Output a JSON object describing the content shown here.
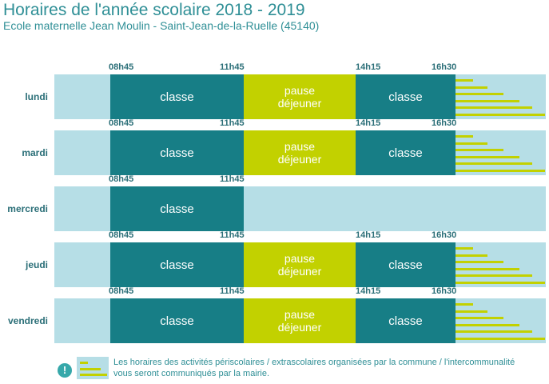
{
  "header": {
    "title": "Horaires de l'année scolaire 2018 - 2019",
    "subtitle": "Ecole maternelle Jean Moulin - Saint-Jean-de-la-Ruelle (45140)"
  },
  "labels": {
    "classe": "classe",
    "pause_line1": "pause",
    "pause_line2": "déjeuner"
  },
  "days": [
    {
      "name": "lundi",
      "times": [
        "08h45",
        "11h45",
        "14h15",
        "16h30"
      ],
      "afternoon": true
    },
    {
      "name": "mardi",
      "times": [
        "08h45",
        "11h45",
        "14h15",
        "16h30"
      ],
      "afternoon": true
    },
    {
      "name": "mercredi",
      "times": [
        "08h45",
        "11h45"
      ],
      "afternoon": false
    },
    {
      "name": "jeudi",
      "times": [
        "08h45",
        "11h45",
        "14h15",
        "16h30"
      ],
      "afternoon": true
    },
    {
      "name": "vendredi",
      "times": [
        "08h45",
        "11h45",
        "14h15",
        "16h30"
      ],
      "afternoon": true
    }
  ],
  "legend": {
    "text": "Les horaires des activités périscolaires / extrascolaires organisées par la commune / l'intercommunalité vous seront communiqués par la mairie.",
    "icon": "info-icon"
  },
  "colors": {
    "classe": "#177e86",
    "pause": "#c2d100",
    "background_bar": "#b6dee6",
    "text": "#2f8f96"
  }
}
